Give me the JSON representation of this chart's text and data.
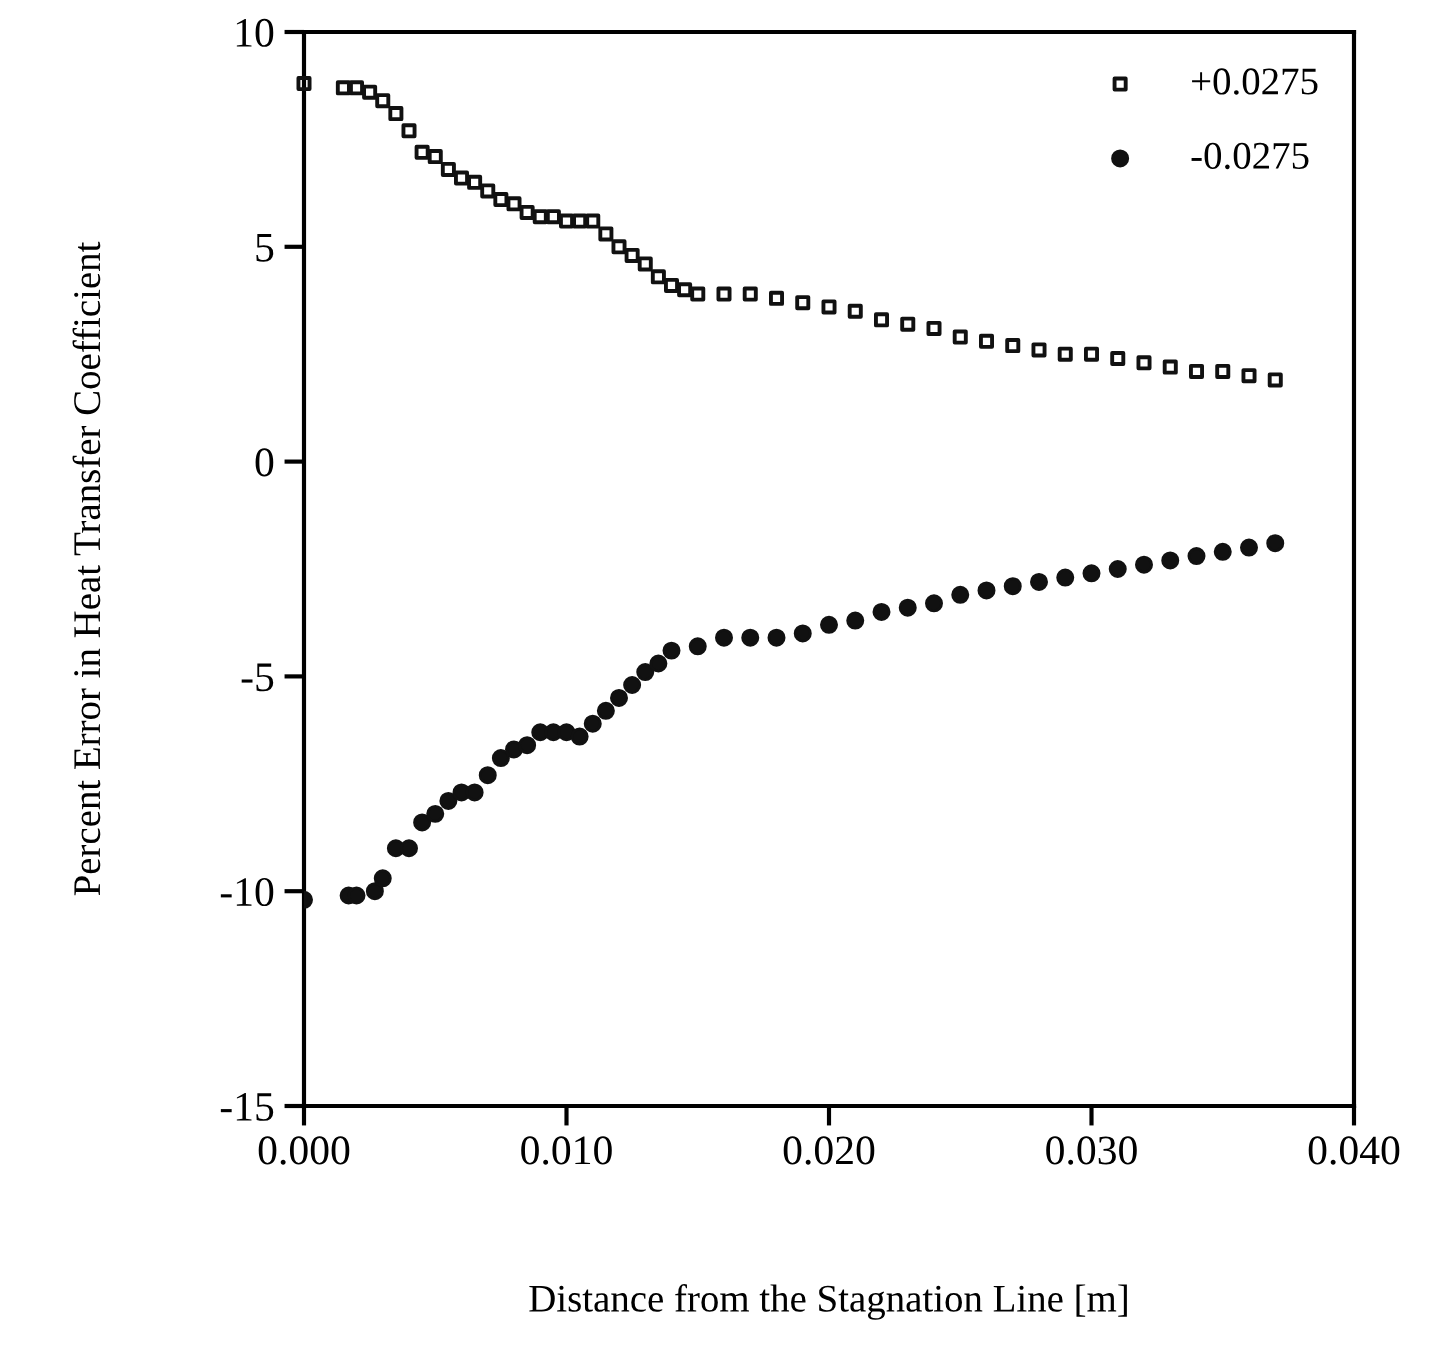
{
  "chart_data": {
    "type": "scatter",
    "xlabel": "Distance from the Stagnation Line [m]",
    "ylabel": "Percent Error in Heat Transfer Coefficient",
    "xlim": [
      0,
      0.04
    ],
    "xticks": [
      {
        "value": 0,
        "label": "0.000"
      },
      {
        "value": 0.01,
        "label": "0.010"
      },
      {
        "value": 0.02,
        "label": "0.020"
      },
      {
        "value": 0.03,
        "label": "0.030"
      },
      {
        "value": 0.04,
        "label": "0.040"
      }
    ],
    "ylim": [
      -15,
      10
    ],
    "yticks": [
      -15,
      -10,
      -5,
      0,
      5,
      10
    ],
    "grid": false,
    "legend": "top right",
    "series": [
      {
        "name": "+0.0275",
        "color": "#111111",
        "marker": "square",
        "x": [
          0,
          0.0015,
          0.002,
          0.0025,
          0.003,
          0.0035,
          0.004,
          0.0045,
          0.005,
          0.0055,
          0.006,
          0.0065,
          0.007,
          0.0075,
          0.008,
          0.0085,
          0.009,
          0.0095,
          0.01,
          0.0105,
          0.011,
          0.0115,
          0.012,
          0.0125,
          0.013,
          0.0135,
          0.014,
          0.0145,
          0.015,
          0.016,
          0.017,
          0.018,
          0.019,
          0.02,
          0.021,
          0.022,
          0.023,
          0.024,
          0.025,
          0.026,
          0.027,
          0.028,
          0.029,
          0.03,
          0.031,
          0.032,
          0.033,
          0.034,
          0.035,
          0.036,
          0.037
        ],
        "values": [
          8.8,
          8.7,
          8.7,
          8.6,
          8.4,
          8.1,
          7.7,
          7.2,
          7.1,
          6.8,
          6.6,
          6.5,
          6.3,
          6.1,
          6.0,
          5.8,
          5.7,
          5.7,
          5.6,
          5.6,
          5.6,
          5.3,
          5.0,
          4.8,
          4.6,
          4.3,
          4.1,
          4.0,
          3.9,
          3.9,
          3.9,
          3.8,
          3.7,
          3.6,
          3.5,
          3.3,
          3.2,
          3.1,
          2.9,
          2.8,
          2.7,
          2.6,
          2.5,
          2.5,
          2.4,
          2.3,
          2.2,
          2.1,
          2.1,
          2.0,
          1.9
        ]
      },
      {
        "name": "-0.0275",
        "color": "#111111",
        "marker": "circle",
        "x": [
          0,
          0.0017,
          0.002,
          0.0027,
          0.003,
          0.0035,
          0.004,
          0.0045,
          0.005,
          0.0055,
          0.006,
          0.0065,
          0.007,
          0.0075,
          0.008,
          0.0085,
          0.009,
          0.0095,
          0.01,
          0.0105,
          0.011,
          0.0115,
          0.012,
          0.0125,
          0.013,
          0.0135,
          0.014,
          0.015,
          0.016,
          0.017,
          0.018,
          0.019,
          0.02,
          0.021,
          0.022,
          0.023,
          0.024,
          0.025,
          0.026,
          0.027,
          0.028,
          0.029,
          0.03,
          0.031,
          0.032,
          0.033,
          0.034,
          0.035,
          0.036,
          0.037
        ],
        "values": [
          -10.2,
          -10.1,
          -10.1,
          -10.0,
          -9.7,
          -9.0,
          -9.0,
          -8.4,
          -8.2,
          -7.9,
          -7.7,
          -7.7,
          -7.3,
          -6.9,
          -6.7,
          -6.6,
          -6.3,
          -6.3,
          -6.3,
          -6.4,
          -6.1,
          -5.8,
          -5.5,
          -5.2,
          -4.9,
          -4.7,
          -4.4,
          -4.3,
          -4.1,
          -4.1,
          -4.1,
          -4.0,
          -3.8,
          -3.7,
          -3.5,
          -3.4,
          -3.3,
          -3.1,
          -3.0,
          -2.9,
          -2.8,
          -2.7,
          -2.6,
          -2.5,
          -2.4,
          -2.3,
          -2.2,
          -2.1,
          -2.0,
          -1.9
        ]
      }
    ]
  }
}
